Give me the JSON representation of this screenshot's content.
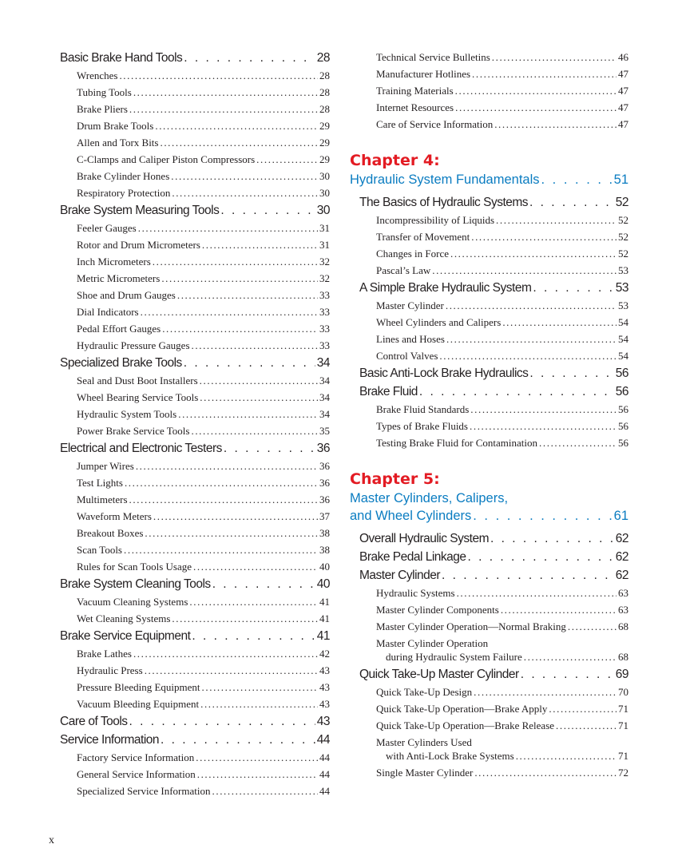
{
  "left": [
    {
      "title": "Basic Brake Hand Tools",
      "page": "28",
      "items": [
        {
          "title": "Wrenches",
          "page": "28"
        },
        {
          "title": "Tubing Tools",
          "page": "28"
        },
        {
          "title": "Brake Pliers",
          "page": "28"
        },
        {
          "title": "Drum Brake Tools",
          "page": "29"
        },
        {
          "title": "Allen and Torx Bits",
          "page": "29"
        },
        {
          "title": "C-Clamps and Caliper Piston Compressors",
          "page": "29"
        },
        {
          "title": "Brake Cylinder Hones",
          "page": "30"
        },
        {
          "title": "Respiratory Protection",
          "page": "30"
        }
      ]
    },
    {
      "title": "Brake System Measuring Tools",
      "page": "30",
      "items": [
        {
          "title": "Feeler Gauges",
          "page": "31"
        },
        {
          "title": "Rotor and Drum Micrometers",
          "page": "31"
        },
        {
          "title": "Inch Micrometers",
          "page": "32"
        },
        {
          "title": "Metric Micrometers",
          "page": "32"
        },
        {
          "title": "Shoe and Drum Gauges",
          "page": "33"
        },
        {
          "title": "Dial Indicators",
          "page": "33"
        },
        {
          "title": "Pedal Effort Gauges",
          "page": "33"
        },
        {
          "title": "Hydraulic Pressure Gauges",
          "page": "33"
        }
      ]
    },
    {
      "title": "Specialized Brake Tools",
      "page": "34",
      "items": [
        {
          "title": "Seal and Dust Boot Installers",
          "page": "34"
        },
        {
          "title": "Wheel Bearing Service Tools",
          "page": "34"
        },
        {
          "title": "Hydraulic System Tools",
          "page": "34"
        },
        {
          "title": "Power Brake Service Tools",
          "page": "35"
        }
      ]
    },
    {
      "title": "Electrical and Electronic Testers",
      "page": "36",
      "items": [
        {
          "title": "Jumper Wires",
          "page": "36"
        },
        {
          "title": "Test Lights",
          "page": "36"
        },
        {
          "title": "Multimeters",
          "page": "36"
        },
        {
          "title": "Waveform Meters",
          "page": "37"
        },
        {
          "title": "Breakout Boxes",
          "page": "38"
        },
        {
          "title": "Scan Tools",
          "page": "38"
        },
        {
          "title": "Rules for Scan Tools Usage",
          "page": "40"
        }
      ]
    },
    {
      "title": "Brake System Cleaning Tools",
      "page": "40",
      "items": [
        {
          "title": "Vacuum Cleaning Systems",
          "page": "41"
        },
        {
          "title": "Wet Cleaning Systems",
          "page": "41"
        }
      ]
    },
    {
      "title": "Brake Service Equipment",
      "page": "41",
      "items": [
        {
          "title": "Brake Lathes",
          "page": "42"
        },
        {
          "title": "Hydraulic Press",
          "page": "43"
        },
        {
          "title": "Pressure Bleeding Equipment",
          "page": "43"
        },
        {
          "title": "Vacuum Bleeding Equipment",
          "page": "43"
        }
      ]
    },
    {
      "title": "Care of Tools",
      "page": "43",
      "items": []
    },
    {
      "title": "Service Information",
      "page": "44",
      "items": [
        {
          "title": "Factory Service Information",
          "page": "44"
        },
        {
          "title": "General Service Information",
          "page": "44"
        },
        {
          "title": "Specialized Service Information",
          "page": "44"
        }
      ]
    }
  ],
  "right_continued": [
    {
      "title": "Technical Service Bulletins",
      "page": "46"
    },
    {
      "title": "Manufacturer Hotlines",
      "page": "47"
    },
    {
      "title": "Training Materials",
      "page": "47"
    },
    {
      "title": "Internet Resources",
      "page": "47"
    },
    {
      "title": "Care of Service Information",
      "page": "47"
    }
  ],
  "chapters": [
    {
      "label": "Chapter 4:",
      "title_lines": [
        "Hydraulic System Fundamentals"
      ],
      "page": "51",
      "sections": [
        {
          "title": "The Basics of Hydraulic Systems",
          "page": "52",
          "items": [
            {
              "lines": [
                "Incompressibility of Liquids"
              ],
              "page": "52"
            },
            {
              "lines": [
                "Transfer of Movement"
              ],
              "page": "52"
            },
            {
              "lines": [
                "Changes in Force"
              ],
              "page": "52"
            },
            {
              "lines": [
                "Pascal’s Law"
              ],
              "page": "53"
            }
          ]
        },
        {
          "title": "A Simple Brake Hydraulic System",
          "page": "53",
          "items": [
            {
              "lines": [
                "Master Cylinder"
              ],
              "page": "53"
            },
            {
              "lines": [
                "Wheel Cylinders and Calipers"
              ],
              "page": "54"
            },
            {
              "lines": [
                "Lines and Hoses"
              ],
              "page": "54"
            },
            {
              "lines": [
                "Control Valves"
              ],
              "page": "54"
            }
          ]
        },
        {
          "title": "Basic Anti-Lock Brake Hydraulics",
          "page": "56",
          "items": []
        },
        {
          "title": "Brake Fluid",
          "page": "56",
          "items": [
            {
              "lines": [
                "Brake Fluid Standards"
              ],
              "page": "56"
            },
            {
              "lines": [
                "Types of Brake Fluids"
              ],
              "page": "56"
            },
            {
              "lines": [
                "Testing Brake Fluid for Contamination"
              ],
              "page": "56"
            }
          ]
        }
      ]
    },
    {
      "label": "Chapter 5:",
      "title_lines": [
        "Master Cylinders, Calipers,",
        "and Wheel Cylinders"
      ],
      "page": "61",
      "sections": [
        {
          "title": "Overall Hydraulic System",
          "page": "62",
          "items": []
        },
        {
          "title": "Brake Pedal Linkage",
          "page": "62",
          "items": []
        },
        {
          "title": "Master Cylinder",
          "page": "62",
          "items": [
            {
              "lines": [
                "Hydraulic Systems"
              ],
              "page": "63"
            },
            {
              "lines": [
                "Master Cylinder Components"
              ],
              "page": "63"
            },
            {
              "lines": [
                "Master Cylinder Operation—Normal Braking"
              ],
              "page": "68"
            },
            {
              "lines": [
                "Master Cylinder Operation",
                "during Hydraulic System Failure"
              ],
              "page": "68"
            }
          ]
        },
        {
          "title": "Quick Take-Up Master Cylinder",
          "page": "69",
          "items": [
            {
              "lines": [
                "Quick Take-Up Design"
              ],
              "page": "70"
            },
            {
              "lines": [
                "Quick Take-Up Operation—Brake Apply"
              ],
              "page": "71"
            },
            {
              "lines": [
                "Quick Take-Up Operation—Brake Release"
              ],
              "page": "71"
            },
            {
              "lines": [
                "Master Cylinders Used",
                "with Anti-Lock Brake Systems"
              ],
              "page": "71"
            },
            {
              "lines": [
                "Single Master Cylinder"
              ],
              "page": "72"
            }
          ]
        }
      ]
    }
  ],
  "folio": "x",
  "colors": {
    "chapter_label": "#e31b23",
    "chapter_title": "#0a7cc1",
    "text": "#231f20"
  }
}
